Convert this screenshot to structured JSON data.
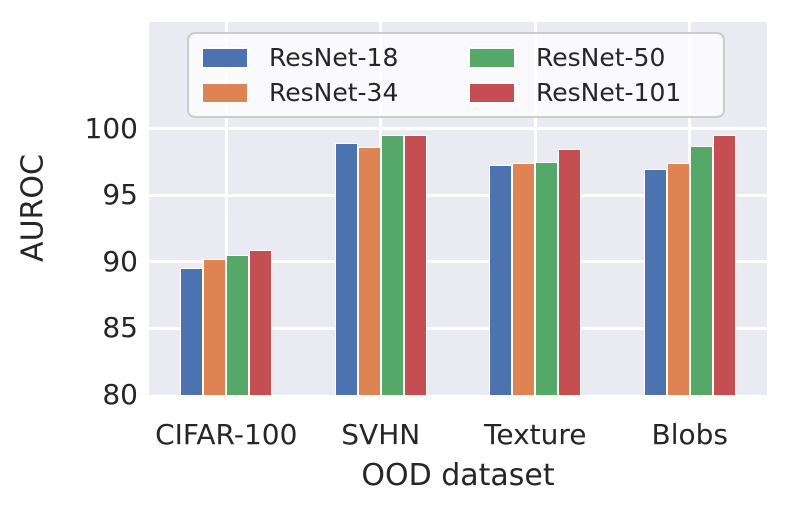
{
  "chart_data": {
    "type": "bar",
    "title": "",
    "xlabel": "OOD dataset",
    "ylabel": "AUROC",
    "categories": [
      "CIFAR-100",
      "SVHN",
      "Texture",
      "Blobs"
    ],
    "series": [
      {
        "name": "ResNet-18",
        "color": "#4c72b0",
        "values": [
          89.5,
          98.9,
          97.3,
          97.0
        ]
      },
      {
        "name": "ResNet-34",
        "color": "#dd8452",
        "values": [
          90.2,
          98.6,
          97.4,
          97.4
        ]
      },
      {
        "name": "ResNet-50",
        "color": "#55a868",
        "values": [
          90.5,
          99.5,
          97.5,
          98.7
        ]
      },
      {
        "name": "ResNet-101",
        "color": "#c44e52",
        "values": [
          90.9,
          99.5,
          98.5,
          99.5
        ]
      }
    ],
    "ylim": [
      80,
      108
    ],
    "yticks": [
      80,
      85,
      90,
      95,
      100
    ],
    "grid": true,
    "grid_vertical_at_category_centers": true,
    "legend_position": "upper-left-inside",
    "legend_columns": 2,
    "colors": {
      "plot_background": "#eaeaf2",
      "grid": "#ffffff",
      "text": "#262626",
      "legend_border": "#cccccc",
      "figure_background": "#ffffff"
    }
  }
}
